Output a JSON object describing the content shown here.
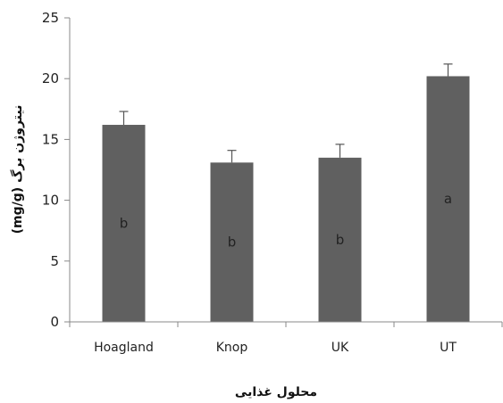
{
  "chart_data": {
    "type": "bar",
    "categories": [
      "Hoagland",
      "Knop",
      "UK",
      "UT"
    ],
    "values": [
      16.2,
      13.1,
      13.5,
      20.2
    ],
    "errors": [
      1.1,
      1.0,
      1.1,
      1.0
    ],
    "bar_labels": [
      "b",
      "b",
      "b",
      "a"
    ],
    "xlabel": "محلول غذایی",
    "ylabel": "(mg/g) نیتروژن برگ",
    "ylim": [
      0,
      25
    ],
    "yticks": [
      "0",
      "5",
      "10",
      "15",
      "20",
      "25"
    ],
    "bar_color": "#606060",
    "grid": false
  }
}
